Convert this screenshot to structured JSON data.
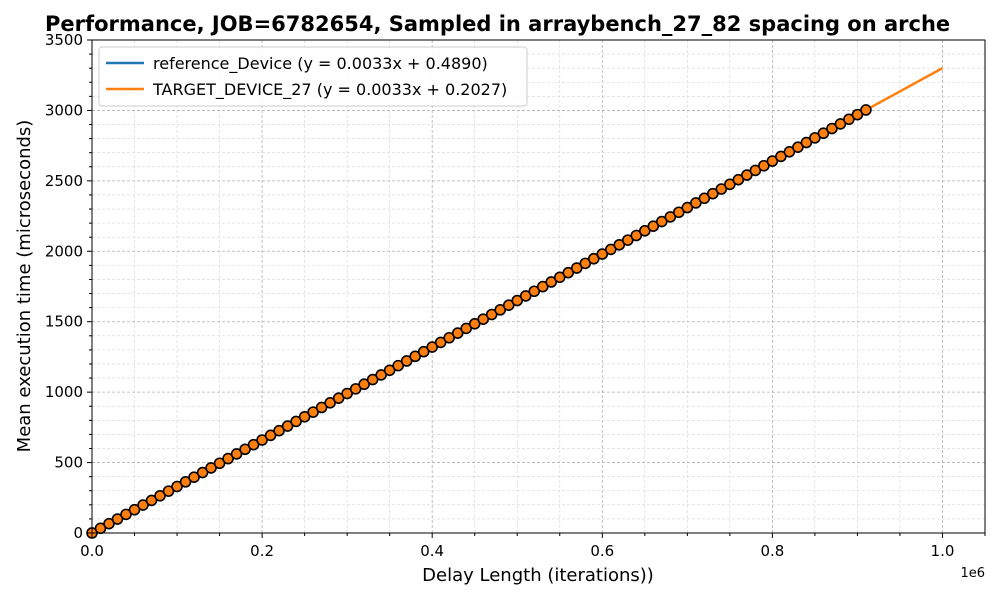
{
  "chart_data": {
    "type": "line",
    "title": "Performance, JOB=6782654, Sampled in arraybench_27_82 spacing on arche",
    "xlabel": "Delay Length (iterations))",
    "ylabel": "Mean execution time (microseconds)",
    "x_offset_label": "1e6",
    "xlim": [
      0,
      1050000
    ],
    "ylim": [
      0,
      3500
    ],
    "x_ticks": [
      0,
      200000,
      400000,
      600000,
      800000,
      1000000
    ],
    "x_tick_labels": [
      "0.0",
      "0.2",
      "0.4",
      "0.6",
      "0.8",
      "1.0"
    ],
    "y_ticks": [
      0,
      500,
      1000,
      1500,
      2000,
      2500,
      3000,
      3500
    ],
    "y_tick_labels": [
      "0",
      "500",
      "1000",
      "1500",
      "2000",
      "2500",
      "3000",
      "3500"
    ],
    "grid": true,
    "legend_position": "top-left",
    "series": [
      {
        "name": "reference_Device (y = 0.0033x + 0.4890)",
        "color": "#1f77b4",
        "slope": 0.0033,
        "intercept": 0.489,
        "x_range": [
          0,
          910000
        ]
      },
      {
        "name": "TARGET_DEVICE_27 (y = 0.0033x + 0.2027)",
        "color": "#ff7f0e",
        "slope": 0.0033,
        "intercept": 0.2027,
        "x_range": [
          0,
          1000000
        ]
      }
    ],
    "samples": {
      "marker_color": "#ff7f0e",
      "marker_edge": "#000000",
      "x_start": 0,
      "x_step": 10000,
      "count": 92,
      "slope": 0.0033,
      "intercept": 0.2027
    }
  }
}
